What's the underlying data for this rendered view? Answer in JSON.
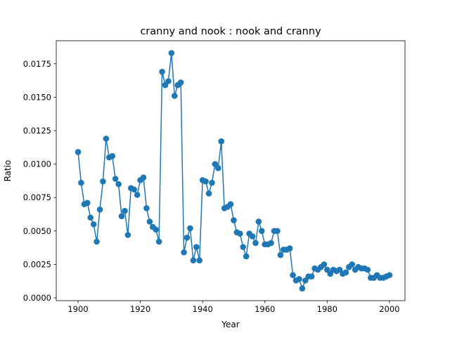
{
  "chart_data": {
    "type": "line",
    "title": "cranny and nook : nook and cranny",
    "xlabel": "Year",
    "ylabel": "Ratio",
    "xlim": [
      1893,
      2005
    ],
    "ylim": [
      -0.00021,
      0.01922
    ],
    "x_ticks": [
      1900,
      1920,
      1940,
      1960,
      1980,
      2000
    ],
    "x_tick_labels": [
      "1900",
      "1920",
      "1940",
      "1960",
      "1980",
      "2000"
    ],
    "y_ticks": [
      0.0,
      0.0025,
      0.005,
      0.0075,
      0.01,
      0.0125,
      0.015,
      0.0175
    ],
    "y_tick_labels": [
      "0.0000",
      "0.0025",
      "0.0050",
      "0.0075",
      "0.0100",
      "0.0125",
      "0.0150",
      "0.0175"
    ],
    "grid": false,
    "legend": "none",
    "colors": {
      "line": "#1f77b4",
      "marker": "#1f77b4"
    },
    "series": [
      {
        "x": [
          1900,
          1901,
          1902,
          1903,
          1904,
          1905,
          1906,
          1907,
          1908,
          1909,
          1910,
          1911,
          1912,
          1913,
          1914,
          1915,
          1916,
          1917,
          1918,
          1919,
          1920,
          1921,
          1922,
          1923,
          1924,
          1925,
          1926,
          1927,
          1928,
          1929,
          1930,
          1931,
          1932,
          1933,
          1934,
          1935,
          1936,
          1937,
          1938,
          1939,
          1940,
          1941,
          1942,
          1943,
          1944,
          1945,
          1946,
          1947,
          1948,
          1949,
          1950,
          1951,
          1952,
          1953,
          1954,
          1955,
          1956,
          1957,
          1958,
          1959,
          1960,
          1961,
          1962,
          1963,
          1964,
          1965,
          1966,
          1967,
          1968,
          1969,
          1970,
          1971,
          1972,
          1973,
          1974,
          1975,
          1976,
          1977,
          1978,
          1979,
          1980,
          1981,
          1982,
          1983,
          1984,
          1985,
          1986,
          1987,
          1988,
          1989,
          1990,
          1991,
          1992,
          1993,
          1994,
          1995,
          1996,
          1997,
          1998,
          1999,
          2000
        ],
        "y": [
          0.0109,
          0.0086,
          0.007,
          0.0071,
          0.006,
          0.0055,
          0.0042,
          0.0066,
          0.0087,
          0.0119,
          0.0105,
          0.0106,
          0.0089,
          0.0085,
          0.0061,
          0.0065,
          0.0047,
          0.0082,
          0.0081,
          0.0077,
          0.0088,
          0.009,
          0.0067,
          0.0057,
          0.0053,
          0.0051,
          0.0042,
          0.0169,
          0.0159,
          0.0162,
          0.0183,
          0.0151,
          0.0159,
          0.0161,
          0.0034,
          0.0045,
          0.0052,
          0.0028,
          0.0038,
          0.0028,
          0.0088,
          0.0087,
          0.0078,
          0.0086,
          0.01,
          0.0097,
          0.0117,
          0.0067,
          0.0068,
          0.007,
          0.0058,
          0.0049,
          0.0048,
          0.0038,
          0.0031,
          0.0048,
          0.0046,
          0.0041,
          0.0057,
          0.005,
          0.004,
          0.004,
          0.0041,
          0.005,
          0.005,
          0.0032,
          0.0036,
          0.0036,
          0.0037,
          0.0017,
          0.0013,
          0.0014,
          0.0007,
          0.0013,
          0.0016,
          0.0016,
          0.0022,
          0.0021,
          0.0023,
          0.0025,
          0.0021,
          0.0018,
          0.0021,
          0.002,
          0.0021,
          0.0018,
          0.0019,
          0.0023,
          0.0025,
          0.0021,
          0.0023,
          0.0022,
          0.0022,
          0.0021,
          0.0015,
          0.0015,
          0.0017,
          0.0015,
          0.0015,
          0.0016,
          0.0017
        ]
      }
    ]
  }
}
